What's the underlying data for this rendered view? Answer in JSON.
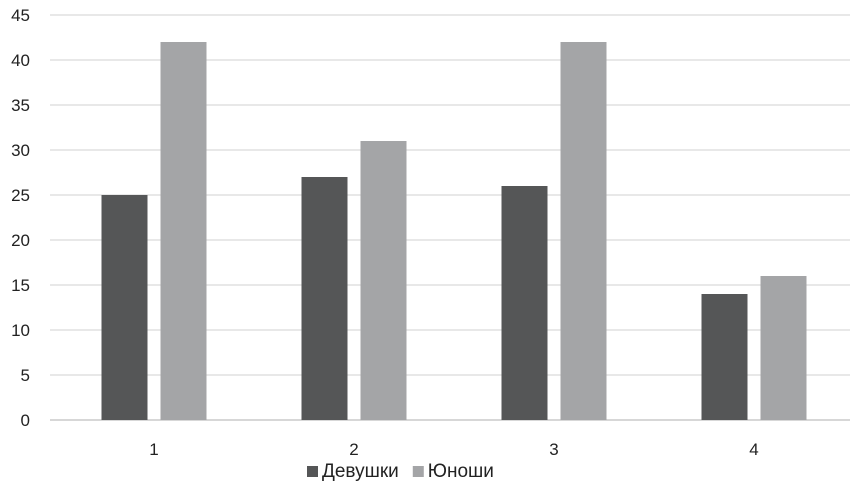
{
  "chart_data": {
    "type": "bar",
    "categories": [
      "1",
      "2",
      "3",
      "4"
    ],
    "series": [
      {
        "name": "Девушки",
        "values": [
          25,
          27,
          26,
          14
        ],
        "color": "#555657"
      },
      {
        "name": "Юноши",
        "values": [
          42,
          31,
          42,
          16
        ],
        "color": "#a4a5a7"
      }
    ],
    "ylim": [
      0,
      45
    ],
    "yticks": [
      0,
      5,
      10,
      15,
      20,
      25,
      30,
      35,
      40,
      45
    ],
    "grid": true,
    "legend": "bottom",
    "title": "",
    "xlabel": "",
    "ylabel": ""
  }
}
